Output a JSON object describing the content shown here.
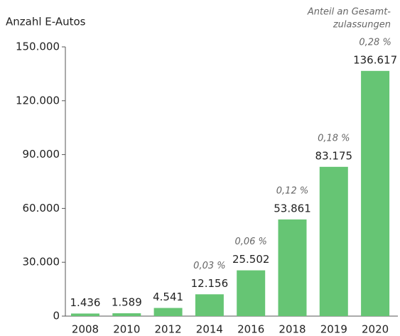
{
  "chart_data": {
    "type": "bar",
    "y_label": "Anzahl E-Autos",
    "annotation_title": [
      "Anteil an Gesamt-",
      "zulassungen"
    ],
    "categories": [
      "2008",
      "2010",
      "2012",
      "2014",
      "2016",
      "2018",
      "2019",
      "2020"
    ],
    "values": [
      1436,
      1589,
      4541,
      12156,
      25502,
      53861,
      83175,
      136617
    ],
    "value_labels": [
      "1.436",
      "1.589",
      "4.541",
      "12.156",
      "25.502",
      "53.861",
      "83.175",
      "136.617"
    ],
    "share_labels": [
      null,
      null,
      null,
      "0,03 %",
      "0,06 %",
      "0,12 %",
      "0,18 %",
      "0,28 %"
    ],
    "color": "#66c574",
    "ylim": [
      0,
      150000
    ],
    "yticks": [
      0,
      {
        "value": 30000,
        "label": "30.000"
      },
      {
        "value": 60000,
        "label": "60.000"
      },
      {
        "value": 90000,
        "label": "90.000"
      },
      {
        "value": 120000,
        "label": "120.000"
      },
      {
        "value": 150000,
        "label": "150.000"
      }
    ],
    "grid": false
  }
}
